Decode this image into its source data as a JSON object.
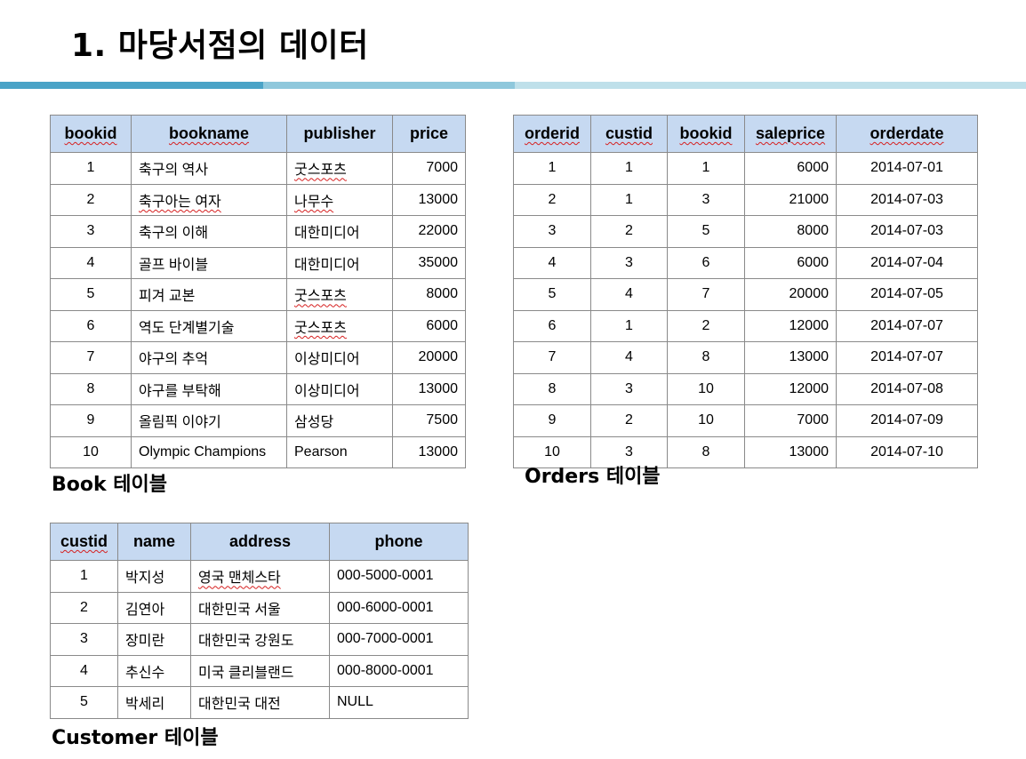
{
  "title": "1. 마당서점의 데이터",
  "book": {
    "caption": "Book 테이블",
    "headers": [
      "bookid",
      "bookname",
      "publisher",
      "price"
    ],
    "rows": [
      [
        "1",
        "축구의 역사",
        "굿스포츠",
        "7000"
      ],
      [
        "2",
        "축구아는 여자",
        "나무수",
        "13000"
      ],
      [
        "3",
        "축구의 이해",
        "대한미디어",
        "22000"
      ],
      [
        "4",
        "골프 바이블",
        "대한미디어",
        "35000"
      ],
      [
        "5",
        "피겨 교본",
        "굿스포츠",
        "8000"
      ],
      [
        "6",
        "역도 단계별기술",
        "굿스포츠",
        "6000"
      ],
      [
        "7",
        "야구의 추억",
        "이상미디어",
        "20000"
      ],
      [
        "8",
        "야구를 부탁해",
        "이상미디어",
        "13000"
      ],
      [
        "9",
        "올림픽 이야기",
        "삼성당",
        "7500"
      ],
      [
        "10",
        "Olympic Champions",
        "Pearson",
        "13000"
      ]
    ]
  },
  "orders": {
    "caption": "Orders 테이블",
    "headers": [
      "orderid",
      "custid",
      "bookid",
      "saleprice",
      "orderdate"
    ],
    "rows": [
      [
        "1",
        "1",
        "1",
        "6000",
        "2014-07-01"
      ],
      [
        "2",
        "1",
        "3",
        "21000",
        "2014-07-03"
      ],
      [
        "3",
        "2",
        "5",
        "8000",
        "2014-07-03"
      ],
      [
        "4",
        "3",
        "6",
        "6000",
        "2014-07-04"
      ],
      [
        "5",
        "4",
        "7",
        "20000",
        "2014-07-05"
      ],
      [
        "6",
        "1",
        "2",
        "12000",
        "2014-07-07"
      ],
      [
        "7",
        "4",
        "8",
        "13000",
        "2014-07-07"
      ],
      [
        "8",
        "3",
        "10",
        "12000",
        "2014-07-08"
      ],
      [
        "9",
        "2",
        "10",
        "7000",
        "2014-07-09"
      ],
      [
        "10",
        "3",
        "8",
        "13000",
        "2014-07-10"
      ]
    ]
  },
  "customer": {
    "caption": "Customer 테이블",
    "headers": [
      "custid",
      "name",
      "address",
      "phone"
    ],
    "rows": [
      [
        "1",
        "박지성",
        "영국 맨체스타",
        "000-5000-0001"
      ],
      [
        "2",
        "김연아",
        "대한민국 서울",
        "000-6000-0001"
      ],
      [
        "3",
        "장미란",
        "대한민국 강원도",
        "000-7000-0001"
      ],
      [
        "4",
        "추신수",
        "미국 클리블랜드",
        "000-8000-0001"
      ],
      [
        "5",
        "박세리",
        "대한민국 대전",
        "NULL"
      ]
    ]
  },
  "accent_colors": {
    "bar_dark": "#4aa3c7",
    "bar_mid": "#8fc8dc",
    "bar_light": "#bfe0ea",
    "header_fill": "#c6d9f1"
  }
}
